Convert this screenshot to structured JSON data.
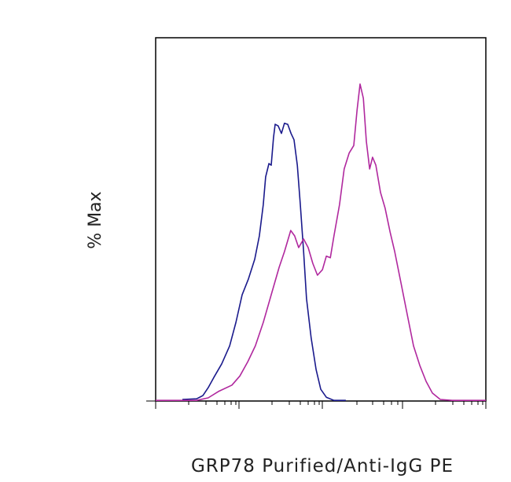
{
  "chart_data": {
    "type": "line",
    "x_label": "GRP78 Purified/Anti-IgG PE",
    "y_label": "% Max",
    "xlim": [
      0,
      100
    ],
    "ylim": [
      0,
      114.6
    ],
    "series": [
      {
        "color": "#1a1a8c",
        "x": [
          8.1,
          12.4,
          14.3,
          15.9,
          17.6,
          20.0,
          22.4,
          24.3,
          26.2,
          28.1,
          30.0,
          31.4,
          32.6,
          33.3,
          34.3,
          35.0,
          35.7,
          36.2,
          37.1,
          38.1,
          39.0,
          40.0,
          41.0,
          41.9,
          42.9,
          43.8,
          44.8,
          45.7,
          47.1,
          48.6,
          50.0,
          51.7,
          54.0,
          57.6
        ],
        "values": [
          0.5,
          0.7,
          1.7,
          4.2,
          7.4,
          11.7,
          17.4,
          24.8,
          33.5,
          38.5,
          44.7,
          52.1,
          62.0,
          70.7,
          74.9,
          74.4,
          83.1,
          87.3,
          86.8,
          84.4,
          87.6,
          87.3,
          84.4,
          82.4,
          74.4,
          62.0,
          47.1,
          32.3,
          19.9,
          9.9,
          3.7,
          1.2,
          0.2,
          0.2
        ]
      },
      {
        "color": "#b0289e",
        "x": [
          0,
          12.4,
          15.9,
          19.0,
          23.1,
          25.5,
          27.9,
          30.2,
          32.6,
          35.0,
          37.4,
          39.0,
          40.9,
          42.1,
          43.3,
          44.8,
          46.2,
          47.6,
          49.0,
          50.5,
          51.7,
          52.9,
          54.0,
          55.7,
          57.1,
          58.6,
          60.0,
          61.0,
          61.9,
          62.9,
          63.8,
          64.8,
          65.7,
          66.7,
          68.1,
          69.5,
          71.0,
          72.4,
          74.3,
          76.2,
          78.1,
          80.0,
          81.9,
          83.8,
          86.2,
          89.8,
          100
        ],
        "values": [
          0.2,
          0.2,
          1.0,
          3.0,
          5.0,
          7.9,
          12.4,
          17.4,
          24.8,
          33.5,
          42.2,
          47.1,
          53.8,
          52.1,
          48.4,
          51.1,
          48.4,
          43.4,
          39.7,
          41.4,
          45.7,
          45.2,
          52.1,
          62.0,
          73.2,
          78.2,
          80.6,
          91.8,
          100,
          95.5,
          81.9,
          73.2,
          76.9,
          74.4,
          65.8,
          60.8,
          53.3,
          47.1,
          37.2,
          27.3,
          17.4,
          11.2,
          6.2,
          2.5,
          0.5,
          0.2,
          0.2
        ]
      }
    ]
  }
}
